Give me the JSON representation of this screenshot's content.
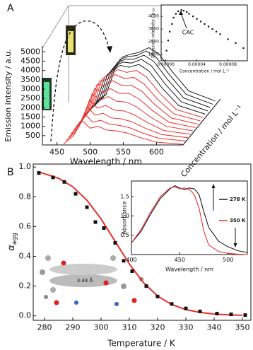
{
  "chart_data": [
    {
      "type": "waterfall",
      "panel_label": "A",
      "xlabel": "Wavelength / nm",
      "ylabel": "Emission intensity / a.u.",
      "zlabel": "Concentration / mol L⁻¹",
      "xlim": [
        428,
        640
      ],
      "ylim": [
        0,
        5200
      ],
      "xticks": [
        450,
        500,
        550,
        600
      ],
      "yticks": [
        500,
        1000,
        1500,
        2000,
        2500,
        3000,
        3500,
        4000,
        4500,
        5000
      ],
      "x": [
        460,
        475,
        488,
        500,
        512,
        525,
        540,
        555,
        575,
        600,
        640
      ],
      "series": [
        {
          "color": "#e8302a",
          "values": [
            50,
            500,
            1300,
            900,
            1000,
            800,
            750,
            650,
            400,
            150,
            30
          ]
        },
        {
          "color": "#e8302a",
          "values": [
            60,
            550,
            1500,
            1050,
            1150,
            950,
            880,
            760,
            470,
            180,
            40
          ]
        },
        {
          "color": "#e8302a",
          "values": [
            70,
            600,
            1700,
            1250,
            1350,
            1100,
            1050,
            900,
            560,
            210,
            40
          ]
        },
        {
          "color": "#e8302a",
          "values": [
            80,
            650,
            1900,
            1450,
            1600,
            1350,
            1300,
            1100,
            680,
            250,
            50
          ]
        },
        {
          "color": "#e8302a",
          "values": [
            90,
            700,
            2050,
            1700,
            1900,
            1650,
            1600,
            1350,
            820,
            300,
            60
          ]
        },
        {
          "color": "#e8302a",
          "values": [
            100,
            700,
            2150,
            1950,
            2150,
            1900,
            1900,
            1600,
            980,
            350,
            60
          ]
        },
        {
          "color": "#e8302a",
          "values": [
            100,
            700,
            2200,
            2150,
            2400,
            2150,
            2150,
            1850,
            1120,
            400,
            70
          ]
        },
        {
          "color": "#e8302a",
          "values": [
            100,
            700,
            2200,
            2300,
            2550,
            2350,
            2400,
            2050,
            1250,
            450,
            70
          ]
        },
        {
          "color": "#e8302a",
          "values": [
            100,
            650,
            2150,
            2400,
            2650,
            2500,
            2600,
            2250,
            1380,
            500,
            80
          ]
        },
        {
          "color": "#1a1a1a",
          "values": [
            100,
            600,
            2050,
            2450,
            2700,
            2600,
            2750,
            2400,
            1480,
            540,
            80
          ]
        },
        {
          "color": "#1a1a1a",
          "values": [
            100,
            550,
            1950,
            2500,
            2700,
            2650,
            2850,
            2500,
            1560,
            570,
            80
          ]
        },
        {
          "color": "#1a1a1a",
          "values": [
            100,
            500,
            1850,
            2500,
            2680,
            2680,
            2900,
            2560,
            1620,
            600,
            90
          ]
        },
        {
          "color": "#1a1a1a",
          "values": [
            100,
            450,
            1750,
            2500,
            2650,
            2700,
            2950,
            2600,
            1660,
            620,
            90
          ]
        },
        {
          "color": "#1a1a1a",
          "values": [
            100,
            400,
            1700,
            2450,
            2600,
            2700,
            2950,
            2620,
            1680,
            630,
            90
          ]
        }
      ]
    },
    {
      "type": "scatter",
      "xlabel": "Concentration / mol L⁻¹",
      "ylabel": "Emission intensity / a.u.",
      "annotation": "CAC",
      "color": "#111",
      "xlim": [
        -6e-06,
        0.000105
      ],
      "ylim": [
        500,
        4900
      ],
      "xticks": [
        {
          "value": 0,
          "label": "0.00000"
        },
        {
          "value": 4e-05,
          "label": "0.00004"
        },
        {
          "value": 8e-05,
          "label": "0.00008"
        }
      ],
      "yticks": [
        1000,
        2000,
        3000,
        4000
      ],
      "x": [
        1e-06,
        3e-06,
        5e-06,
        8e-06,
        1e-05,
        1.3e-05,
        1.6e-05,
        2e-05,
        2.3e-05,
        2.7e-05,
        3e-05,
        3.5e-05,
        4e-05,
        4.5e-05,
        5e-05,
        5.5e-05,
        6e-05,
        6.5e-05,
        7e-05,
        8e-05,
        9e-05,
        0.0001
      ],
      "values": [
        1300,
        2100,
        2800,
        3400,
        3900,
        4200,
        4400,
        4500,
        4450,
        4350,
        4200,
        4000,
        3800,
        3600,
        3400,
        3200,
        3000,
        2800,
        2600,
        2200,
        1900,
        1500
      ]
    },
    {
      "type": "scatter",
      "panel_label": "B",
      "xlabel": "Temperature / K",
      "ylabel": {
        "symbol": "α",
        "subscript": "agg"
      },
      "annotation": "3.44 Å",
      "color": "#111",
      "xlim": [
        276,
        353
      ],
      "ylim": [
        -0.03,
        1.02
      ],
      "xticks": [
        280,
        290,
        300,
        310,
        320,
        330,
        340,
        350
      ],
      "yticks": [
        {
          "value": 0,
          "label": "0.0"
        },
        0.2,
        0.4,
        0.6,
        0.8,
        {
          "value": 1,
          "label": "1.0"
        }
      ],
      "x": [
        278,
        283,
        287,
        291,
        295,
        298,
        301,
        305,
        308,
        311,
        316,
        320,
        325,
        330,
        335,
        341,
        346,
        351
      ],
      "values": [
        0.96,
        0.93,
        0.9,
        0.82,
        0.73,
        0.63,
        0.59,
        0.49,
        0.37,
        0.3,
        0.2,
        0.13,
        0.08,
        0.05,
        0.03,
        0.015,
        0.01,
        0.005
      ],
      "fit": {
        "color": "#e8302a",
        "x": [
          278,
          285,
          290,
          295,
          300,
          305,
          310,
          315,
          320,
          325,
          330,
          335,
          340,
          345,
          350
        ],
        "values": [
          0.967,
          0.924,
          0.867,
          0.777,
          0.651,
          0.5,
          0.349,
          0.223,
          0.133,
          0.076,
          0.042,
          0.023,
          0.012,
          0.007,
          0.004
        ]
      }
    },
    {
      "type": "line",
      "xlabel": "Wavelength / nm",
      "ylabel": "Absorbance",
      "xlim": [
        400,
        520
      ],
      "ylim": [
        0,
        1.9
      ],
      "xticks": [
        400,
        450,
        500
      ],
      "yticks": [
        0.5,
        {
          "value": 1,
          "label": "1.0"
        },
        1.5
      ],
      "x": [
        400,
        410,
        420,
        430,
        440,
        445,
        450,
        455,
        460,
        465,
        470,
        475,
        480,
        490,
        500,
        510,
        520
      ],
      "series": [
        {
          "name": "278 K",
          "color": "#1a1a1a",
          "values": [
            0.3,
            0.6,
            1.05,
            1.45,
            1.7,
            1.78,
            1.72,
            1.68,
            1.72,
            1.7,
            1.55,
            1.1,
            0.7,
            0.35,
            0.2,
            0.1,
            0.05
          ]
        },
        {
          "name": "350 K",
          "color": "#e8302a",
          "values": [
            0.3,
            0.65,
            1.1,
            1.5,
            1.72,
            1.75,
            1.7,
            1.72,
            1.68,
            1.55,
            1.2,
            0.6,
            0.25,
            0.08,
            0.03,
            0.01,
            0
          ]
        }
      ]
    }
  ]
}
